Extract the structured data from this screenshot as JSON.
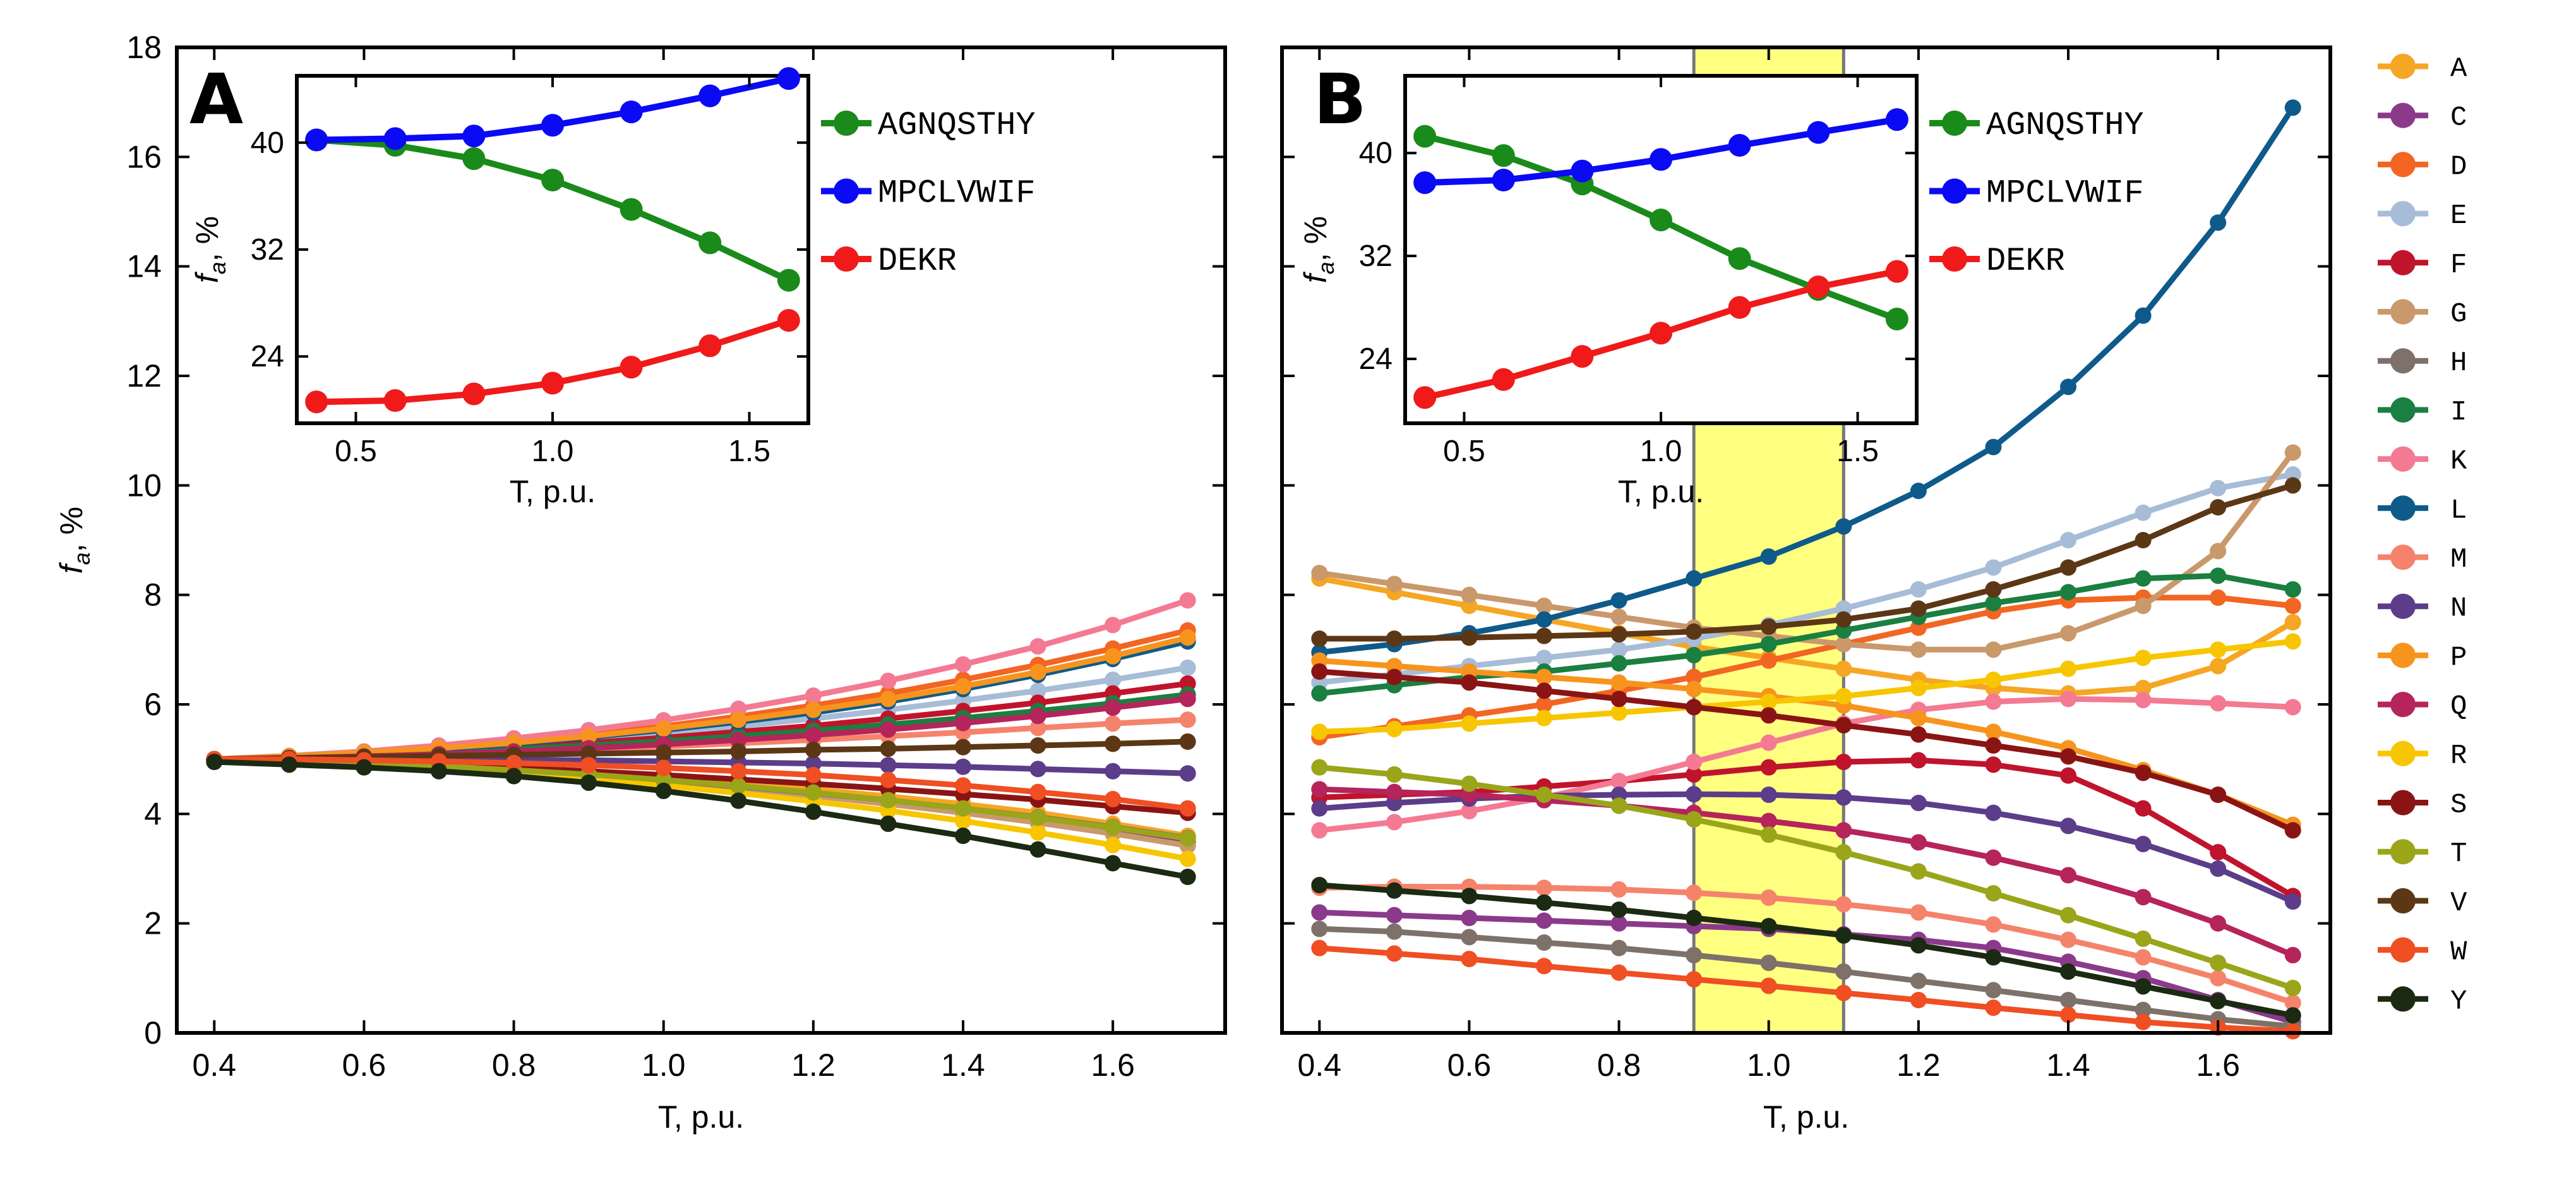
{
  "chart_data": [
    {
      "type": "line",
      "panel": "A",
      "xlabel": "T, p.u.",
      "ylabel_main": "f",
      "ylabel_sub": "a",
      "ylabel_unit": ", %",
      "xlim": [
        0.35,
        1.75
      ],
      "ylim": [
        0,
        18
      ],
      "xticks": [
        "0.4",
        "0.6",
        "0.8",
        "1.0",
        "1.2",
        "1.4",
        "1.6"
      ],
      "yticks": [
        "0",
        "2",
        "4",
        "6",
        "8",
        "10",
        "12",
        "14",
        "16",
        "18"
      ],
      "x": [
        0.4,
        0.5,
        0.6,
        0.7,
        0.8,
        0.9,
        1.0,
        1.1,
        1.2,
        1.3,
        1.4,
        1.5,
        1.6,
        1.7
      ],
      "series": [
        {
          "name": "A",
          "color": "#f5a623",
          "values": [
            5.0,
            5.0,
            4.95,
            4.9,
            4.82,
            4.75,
            4.65,
            4.55,
            4.45,
            4.32,
            4.18,
            4.02,
            3.82,
            3.6
          ]
        },
        {
          "name": "C",
          "color": "#8b3a8b",
          "values": [
            5.0,
            4.98,
            4.93,
            4.87,
            4.8,
            4.71,
            4.6,
            4.48,
            4.35,
            4.2,
            4.05,
            3.88,
            3.7,
            3.48
          ]
        },
        {
          "name": "D",
          "color": "#f26522",
          "values": [
            5.0,
            5.05,
            5.12,
            5.22,
            5.33,
            5.45,
            5.6,
            5.78,
            5.98,
            6.2,
            6.45,
            6.72,
            7.02,
            7.35
          ]
        },
        {
          "name": "E",
          "color": "#a7bcd6",
          "values": [
            5.0,
            5.04,
            5.1,
            5.18,
            5.27,
            5.37,
            5.48,
            5.6,
            5.74,
            5.9,
            6.07,
            6.25,
            6.45,
            6.67
          ]
        },
        {
          "name": "F",
          "color": "#c0142c",
          "values": [
            5.0,
            5.03,
            5.08,
            5.15,
            5.22,
            5.3,
            5.39,
            5.5,
            5.61,
            5.74,
            5.88,
            6.03,
            6.2,
            6.38
          ]
        },
        {
          "name": "G",
          "color": "#c9996b",
          "values": [
            5.0,
            4.97,
            4.92,
            4.85,
            4.77,
            4.68,
            4.58,
            4.46,
            4.33,
            4.18,
            4.02,
            3.84,
            3.64,
            3.42
          ]
        },
        {
          "name": "H",
          "color": "#7d716a",
          "values": [
            5.0,
            4.96,
            4.91,
            4.85,
            4.78,
            4.7,
            4.61,
            4.5,
            4.38,
            4.25,
            4.1,
            3.94,
            3.76,
            3.56
          ]
        },
        {
          "name": "I",
          "color": "#1a7f40",
          "values": [
            5.0,
            5.03,
            5.07,
            5.12,
            5.18,
            5.25,
            5.33,
            5.42,
            5.52,
            5.63,
            5.75,
            5.88,
            6.02,
            6.18
          ]
        },
        {
          "name": "K",
          "color": "#f37a92",
          "values": [
            5.0,
            5.06,
            5.14,
            5.25,
            5.38,
            5.53,
            5.71,
            5.92,
            6.16,
            6.43,
            6.73,
            7.06,
            7.45,
            7.9
          ]
        },
        {
          "name": "L",
          "color": "#0e5a8a",
          "values": [
            5.0,
            5.04,
            5.1,
            5.18,
            5.28,
            5.4,
            5.53,
            5.68,
            5.85,
            6.05,
            6.28,
            6.54,
            6.83,
            7.15
          ]
        },
        {
          "name": "M",
          "color": "#f5836b",
          "values": [
            5.0,
            5.02,
            5.05,
            5.09,
            5.13,
            5.18,
            5.23,
            5.29,
            5.35,
            5.42,
            5.49,
            5.57,
            5.65,
            5.72
          ]
        },
        {
          "name": "N",
          "color": "#5b3d8a",
          "values": [
            5.0,
            5.0,
            5.0,
            5.0,
            4.99,
            4.98,
            4.96,
            4.94,
            4.92,
            4.89,
            4.86,
            4.82,
            4.78,
            4.74
          ]
        },
        {
          "name": "P",
          "color": "#f7941d",
          "values": [
            5.0,
            5.05,
            5.12,
            5.2,
            5.3,
            5.42,
            5.56,
            5.72,
            5.9,
            6.1,
            6.33,
            6.59,
            6.88,
            7.22
          ]
        },
        {
          "name": "Q",
          "color": "#b5245a",
          "values": [
            5.0,
            5.02,
            5.05,
            5.09,
            5.14,
            5.2,
            5.27,
            5.35,
            5.44,
            5.54,
            5.66,
            5.79,
            5.94,
            6.1
          ]
        },
        {
          "name": "R",
          "color": "#f7c600",
          "values": [
            5.0,
            4.96,
            4.9,
            4.83,
            4.74,
            4.64,
            4.52,
            4.38,
            4.23,
            4.06,
            3.87,
            3.66,
            3.43,
            3.18
          ]
        },
        {
          "name": "S",
          "color": "#8a1414",
          "values": [
            5.0,
            4.98,
            4.94,
            4.89,
            4.84,
            4.78,
            4.71,
            4.63,
            4.55,
            4.46,
            4.36,
            4.26,
            4.14,
            4.02
          ]
        },
        {
          "name": "T",
          "color": "#9aa51a",
          "values": [
            5.0,
            4.97,
            4.93,
            4.87,
            4.8,
            4.72,
            4.62,
            4.51,
            4.39,
            4.25,
            4.1,
            3.93,
            3.75,
            3.55
          ]
        },
        {
          "name": "V",
          "color": "#5c3716",
          "values": [
            5.0,
            5.02,
            5.04,
            5.06,
            5.08,
            5.1,
            5.12,
            5.14,
            5.17,
            5.19,
            5.22,
            5.25,
            5.28,
            5.32
          ]
        },
        {
          "name": "W",
          "color": "#f04e23",
          "values": [
            5.0,
            5.0,
            4.98,
            4.96,
            4.93,
            4.89,
            4.84,
            4.78,
            4.71,
            4.62,
            4.52,
            4.4,
            4.27,
            4.1
          ]
        },
        {
          "name": "Y",
          "color": "#1b2a12",
          "values": [
            4.95,
            4.9,
            4.85,
            4.78,
            4.69,
            4.57,
            4.42,
            4.24,
            4.04,
            3.82,
            3.6,
            3.35,
            3.1,
            2.85
          ]
        }
      ],
      "inset": {
        "xlabel": "T, p.u.",
        "ylabel_main": "f",
        "ylabel_sub": "a",
        "ylabel_unit": ", %",
        "xlim": [
          0.35,
          1.65
        ],
        "ylim": [
          19,
          45
        ],
        "xticks": [
          "0.5",
          "1.0",
          "1.5"
        ],
        "yticks": [
          "24",
          "32",
          "40"
        ],
        "x": [
          0.4,
          0.6,
          0.8,
          1.0,
          1.2,
          1.4,
          1.6
        ],
        "series": [
          {
            "name": "AGNQSTHY",
            "color": "#1a8a1a",
            "values": [
              40.2,
              39.8,
              38.8,
              37.2,
              35.0,
              32.5,
              29.7
            ]
          },
          {
            "name": "MPCLVWIF",
            "color": "#0a0af5",
            "values": [
              40.2,
              40.3,
              40.5,
              41.3,
              42.3,
              43.5,
              44.8
            ]
          },
          {
            "name": "DEKR",
            "color": "#f01a1a",
            "values": [
              20.6,
              20.7,
              21.2,
              22.0,
              23.2,
              24.8,
              26.7
            ]
          }
        ]
      }
    },
    {
      "type": "line",
      "panel": "B",
      "xlabel": "T, p.u.",
      "xlim": [
        0.35,
        1.75
      ],
      "ylim": [
        0,
        18
      ],
      "xticks": [
        "0.4",
        "0.6",
        "0.8",
        "1.0",
        "1.2",
        "1.4",
        "1.6"
      ],
      "highlight_band": [
        0.9,
        1.1
      ],
      "highlight_color": "#ffff80",
      "x": [
        0.4,
        0.5,
        0.6,
        0.7,
        0.8,
        0.9,
        1.0,
        1.1,
        1.2,
        1.3,
        1.4,
        1.5,
        1.6,
        1.7
      ],
      "series": [
        {
          "name": "A",
          "color": "#f5a623",
          "values": [
            8.3,
            8.05,
            7.8,
            7.55,
            7.3,
            7.05,
            6.85,
            6.65,
            6.45,
            6.3,
            6.2,
            6.3,
            6.7,
            7.5
          ]
        },
        {
          "name": "C",
          "color": "#8b3a8b",
          "values": [
            2.2,
            2.15,
            2.1,
            2.05,
            2.0,
            1.95,
            1.9,
            1.8,
            1.7,
            1.55,
            1.3,
            1.0,
            0.6,
            0.2
          ]
        },
        {
          "name": "D",
          "color": "#f26522",
          "values": [
            5.4,
            5.6,
            5.8,
            6.0,
            6.25,
            6.5,
            6.8,
            7.1,
            7.4,
            7.7,
            7.9,
            7.95,
            7.95,
            7.8
          ]
        },
        {
          "name": "E",
          "color": "#a7bcd6",
          "values": [
            6.4,
            6.55,
            6.7,
            6.85,
            7.0,
            7.2,
            7.45,
            7.75,
            8.1,
            8.5,
            9.0,
            9.5,
            9.95,
            10.2
          ]
        },
        {
          "name": "F",
          "color": "#c0142c",
          "values": [
            4.3,
            4.35,
            4.4,
            4.5,
            4.6,
            4.72,
            4.85,
            4.95,
            4.98,
            4.9,
            4.7,
            4.1,
            3.3,
            2.5
          ]
        },
        {
          "name": "G",
          "color": "#c9996b",
          "values": [
            8.4,
            8.2,
            8.0,
            7.8,
            7.6,
            7.4,
            7.25,
            7.1,
            7.0,
            7.0,
            7.3,
            7.8,
            8.8,
            10.6
          ]
        },
        {
          "name": "H",
          "color": "#7d716a",
          "values": [
            1.9,
            1.85,
            1.75,
            1.65,
            1.55,
            1.42,
            1.28,
            1.12,
            0.95,
            0.78,
            0.6,
            0.42,
            0.25,
            0.12
          ]
        },
        {
          "name": "I",
          "color": "#1a7f40",
          "values": [
            6.2,
            6.35,
            6.5,
            6.6,
            6.75,
            6.9,
            7.1,
            7.35,
            7.6,
            7.85,
            8.05,
            8.3,
            8.35,
            8.1
          ]
        },
        {
          "name": "K",
          "color": "#f37a92",
          "values": [
            3.7,
            3.85,
            4.05,
            4.3,
            4.6,
            4.95,
            5.3,
            5.65,
            5.9,
            6.05,
            6.1,
            6.08,
            6.02,
            5.95
          ]
        },
        {
          "name": "L",
          "color": "#0e5a8a",
          "values": [
            6.95,
            7.1,
            7.3,
            7.55,
            7.9,
            8.3,
            8.7,
            9.25,
            9.9,
            10.7,
            11.8,
            13.1,
            14.8,
            16.9
          ]
        },
        {
          "name": "M",
          "color": "#f5836b",
          "values": [
            2.65,
            2.67,
            2.67,
            2.65,
            2.62,
            2.56,
            2.47,
            2.35,
            2.2,
            1.98,
            1.7,
            1.38,
            1.0,
            0.55
          ]
        },
        {
          "name": "N",
          "color": "#5b3d8a",
          "values": [
            4.1,
            4.2,
            4.28,
            4.33,
            4.35,
            4.36,
            4.35,
            4.3,
            4.2,
            4.02,
            3.78,
            3.45,
            3.0,
            2.4
          ]
        },
        {
          "name": "P",
          "color": "#f7941d",
          "values": [
            6.8,
            6.7,
            6.6,
            6.5,
            6.4,
            6.28,
            6.15,
            5.98,
            5.75,
            5.5,
            5.2,
            4.8,
            4.35,
            3.8
          ]
        },
        {
          "name": "Q",
          "color": "#b5245a",
          "values": [
            4.45,
            4.4,
            4.35,
            4.25,
            4.15,
            4.02,
            3.87,
            3.7,
            3.48,
            3.2,
            2.88,
            2.48,
            2.0,
            1.42
          ]
        },
        {
          "name": "R",
          "color": "#f7c600",
          "values": [
            5.5,
            5.55,
            5.65,
            5.75,
            5.85,
            5.95,
            6.05,
            6.15,
            6.3,
            6.45,
            6.65,
            6.85,
            7.0,
            7.15
          ]
        },
        {
          "name": "S",
          "color": "#8a1414",
          "values": [
            6.6,
            6.5,
            6.4,
            6.25,
            6.1,
            5.95,
            5.8,
            5.62,
            5.45,
            5.25,
            5.05,
            4.75,
            4.35,
            3.7
          ]
        },
        {
          "name": "T",
          "color": "#9aa51a",
          "values": [
            4.85,
            4.72,
            4.55,
            4.35,
            4.15,
            3.9,
            3.62,
            3.3,
            2.95,
            2.55,
            2.15,
            1.72,
            1.28,
            0.82
          ]
        },
        {
          "name": "V",
          "color": "#5c3716",
          "values": [
            7.2,
            7.2,
            7.22,
            7.25,
            7.28,
            7.33,
            7.42,
            7.55,
            7.75,
            8.1,
            8.5,
            9.0,
            9.6,
            10.0
          ]
        },
        {
          "name": "W",
          "color": "#f04e23",
          "values": [
            1.55,
            1.45,
            1.35,
            1.22,
            1.1,
            0.98,
            0.86,
            0.73,
            0.6,
            0.46,
            0.33,
            0.2,
            0.1,
            0.03
          ]
        },
        {
          "name": "Y",
          "color": "#1b2a12",
          "values": [
            2.7,
            2.6,
            2.5,
            2.38,
            2.25,
            2.1,
            1.95,
            1.78,
            1.6,
            1.38,
            1.12,
            0.85,
            0.58,
            0.32
          ]
        }
      ],
      "inset": {
        "xlabel": "T, p.u.",
        "ylabel_main": "f",
        "ylabel_sub": "a",
        "ylabel_unit": ", %",
        "xlim": [
          0.35,
          1.65
        ],
        "ylim": [
          19,
          46
        ],
        "xticks": [
          "0.5",
          "1.0",
          "1.5"
        ],
        "yticks": [
          "24",
          "32",
          "40"
        ],
        "x": [
          0.4,
          0.6,
          0.8,
          1.0,
          1.2,
          1.4,
          1.6
        ],
        "series": [
          {
            "name": "AGNQSTHY",
            "color": "#1a8a1a",
            "values": [
              41.3,
              39.8,
              37.6,
              34.8,
              31.8,
              29.4,
              27.1
            ]
          },
          {
            "name": "MPCLVWIF",
            "color": "#0a0af5",
            "values": [
              37.7,
              37.9,
              38.6,
              39.5,
              40.6,
              41.6,
              42.6
            ]
          },
          {
            "name": "DEKR",
            "color": "#f01a1a",
            "values": [
              21.0,
              22.4,
              24.2,
              26.0,
              28.0,
              29.6,
              30.8
            ]
          }
        ]
      }
    }
  ],
  "legend": {
    "entries": [
      "A",
      "C",
      "D",
      "E",
      "F",
      "G",
      "H",
      "I",
      "K",
      "L",
      "M",
      "N",
      "P",
      "Q",
      "R",
      "S",
      "T",
      "V",
      "W",
      "Y"
    ]
  },
  "panel_labels": {
    "a": "A",
    "b": "B"
  }
}
